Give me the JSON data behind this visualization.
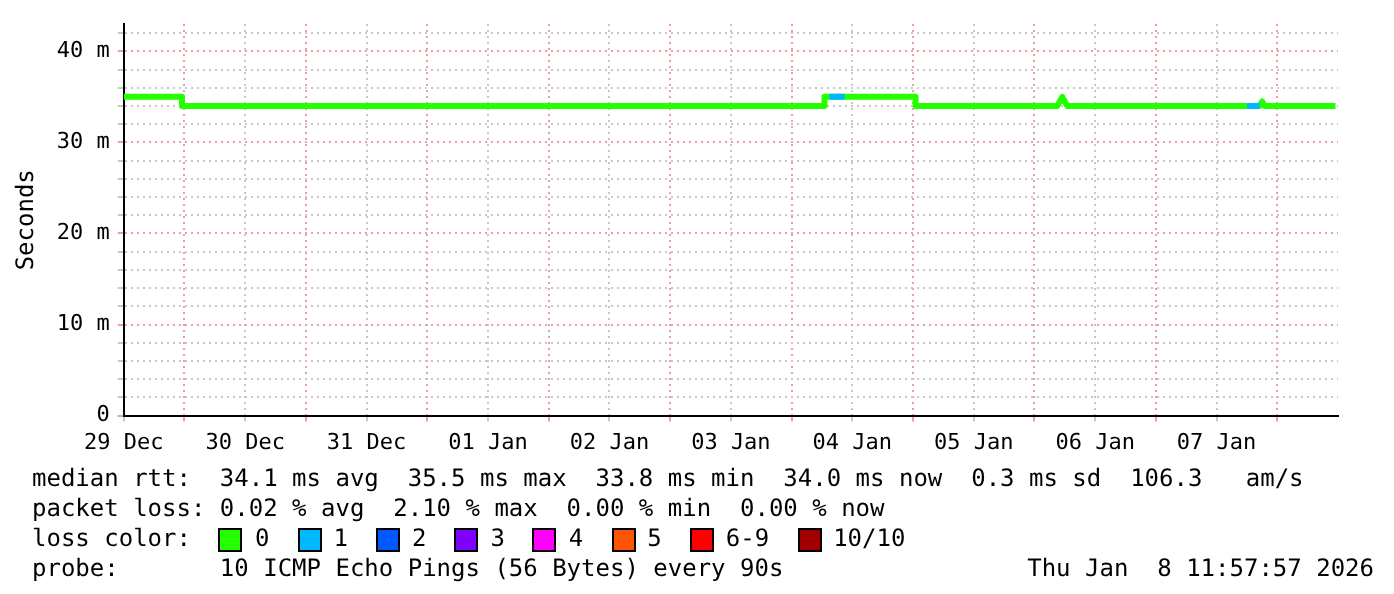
{
  "chart_data": {
    "type": "line",
    "ylabel": "Seconds",
    "legend_title": "loss color:",
    "legend": "bottom",
    "grid": true,
    "marker": "none",
    "line_style": "solid",
    "xlim": [
      "2025-12-29T12:00",
      "2026-01-08T12:00"
    ],
    "xticks": [
      {
        "value": "2025-12-29T12:00",
        "label": "29 Dec"
      },
      {
        "value": "2025-12-30T00:00",
        "label": null
      },
      {
        "value": "2025-12-30T12:00",
        "label": "30 Dec"
      },
      {
        "value": "2025-12-31T00:00",
        "label": null
      },
      {
        "value": "2025-12-31T12:00",
        "label": "31 Dec"
      },
      {
        "value": "2026-01-01T00:00",
        "label": null
      },
      {
        "value": "2026-01-01T12:00",
        "label": "01 Jan"
      },
      {
        "value": "2026-01-02T00:00",
        "label": null
      },
      {
        "value": "2026-01-02T12:00",
        "label": "02 Jan"
      },
      {
        "value": "2026-01-03T00:00",
        "label": null
      },
      {
        "value": "2026-01-03T12:00",
        "label": "03 Jan"
      },
      {
        "value": "2026-01-04T00:00",
        "label": null
      },
      {
        "value": "2026-01-04T12:00",
        "label": "04 Jan"
      },
      {
        "value": "2026-01-05T00:00",
        "label": null
      },
      {
        "value": "2026-01-05T12:00",
        "label": "05 Jan"
      },
      {
        "value": "2026-01-06T00:00",
        "label": null
      },
      {
        "value": "2026-01-06T12:00",
        "label": "06 Jan"
      },
      {
        "value": "2026-01-07T00:00",
        "label": null
      },
      {
        "value": "2026-01-07T12:00",
        "label": "07 Jan"
      },
      {
        "value": "2026-01-08T00:00",
        "label": null
      }
    ],
    "ylim": [
      0,
      43
    ],
    "yticks": [
      {
        "value": 0,
        "label": "0"
      },
      {
        "value": 2,
        "label": null
      },
      {
        "value": 4,
        "label": null
      },
      {
        "value": 6,
        "label": null
      },
      {
        "value": 8,
        "label": null
      },
      {
        "value": 10,
        "label": "10 m"
      },
      {
        "value": 12,
        "label": null
      },
      {
        "value": 14,
        "label": null
      },
      {
        "value": 16,
        "label": null
      },
      {
        "value": 18,
        "label": null
      },
      {
        "value": 20,
        "label": "20 m"
      },
      {
        "value": 22,
        "label": null
      },
      {
        "value": 24,
        "label": null
      },
      {
        "value": 26,
        "label": null
      },
      {
        "value": 28,
        "label": null
      },
      {
        "value": 30,
        "label": "30 m"
      },
      {
        "value": 32,
        "label": null
      },
      {
        "value": 34,
        "label": null
      },
      {
        "value": 36,
        "label": null
      },
      {
        "value": 38,
        "label": null
      },
      {
        "value": 40,
        "label": "40 m"
      },
      {
        "value": 42,
        "label": null
      }
    ],
    "series": [
      {
        "name": "0",
        "color": "#26ff00",
        "x": [
          "2025-12-29T12:00",
          "2025-12-29T23:30",
          "2025-12-29T23:30",
          "2026-01-04T06:30",
          "2026-01-04T06:30",
          "2026-01-05T00:30",
          "2026-01-05T00:30",
          "2026-01-06T04:30",
          "2026-01-06T05:30",
          "2026-01-06T06:30",
          "2026-01-07T20:30",
          "2026-01-07T21:00",
          "2026-01-07T21:30",
          "2026-01-08T11:30"
        ],
        "values": [
          35,
          35,
          34,
          34,
          35,
          35,
          34,
          34,
          35,
          34,
          34,
          34.5,
          34,
          34
        ]
      },
      {
        "name": "1",
        "color": "#00b8ff",
        "x": [
          "2026-01-04T07:30",
          "2026-01-04T10:30",
          "2026-01-05T12:00",
          "2026-01-07T18:00",
          "2026-01-07T20:30"
        ],
        "values": [
          35,
          35,
          null,
          34,
          34
        ]
      },
      {
        "name": "2",
        "color": "#0059ff"
      },
      {
        "name": "3",
        "color": "#7e00ff"
      },
      {
        "name": "4",
        "color": "#ff00ff"
      },
      {
        "name": "5",
        "color": "#ff5500"
      },
      {
        "name": "6-9",
        "color": "#ff0000"
      },
      {
        "name": "10/10",
        "color": "#a10000"
      }
    ],
    "annotations": [
      "median rtt:  34.1 ms avg  35.5 ms max  33.8 ms min  34.0 ms now  0.3 ms sd  106.3   am/s",
      "packet loss: 0.02 % avg  2.10 % max  0.00 % min  0.00 % now",
      "probe:       10 ICMP Echo Pings (56 Bytes) every 90s",
      "Thu Jan  8 11:57:57 2026"
    ]
  }
}
